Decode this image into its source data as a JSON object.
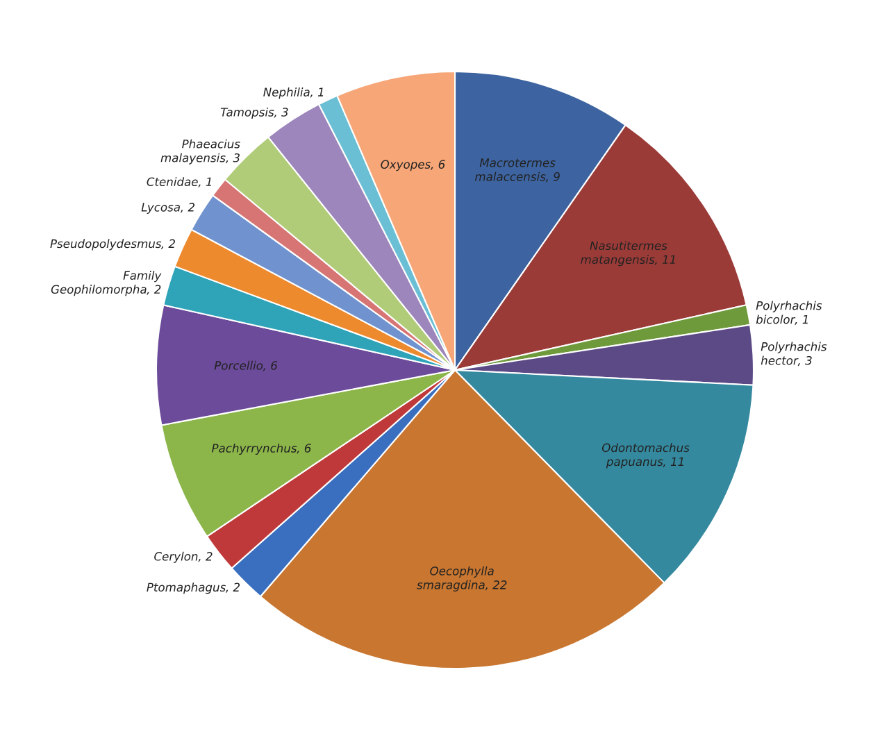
{
  "chart_data": {
    "type": "pie",
    "categories": [
      "Macrotermes malaccensis",
      "Nasutitermes matangensis",
      "Polyrhachis bicolor",
      "Polyrhachis hector",
      "Odontomachus papuanus",
      "Oecophylla smaragdina",
      "Ptomaphagus",
      "Cerylon",
      "Pachyrrynchus",
      "Porcellio",
      "Family Geophilomorpha",
      "Pseudopolydesmus",
      "Lycosa",
      "Ctenidae",
      "Phaeacius malayensis",
      "Tamopsis",
      "Nephilia",
      "Oxyopes"
    ],
    "values": [
      9,
      11,
      1,
      3,
      11,
      22,
      2,
      2,
      6,
      6,
      2,
      2,
      2,
      1,
      3,
      3,
      1,
      6
    ],
    "value_labels": [
      ", 9",
      ", 11",
      ", 1",
      ", 3",
      ", 11",
      ", 22",
      ", 2",
      ", 2",
      ", 6",
      ", 6",
      ", 2",
      ", 2",
      ", 2",
      ", 1",
      ", 3",
      ", 3",
      ", 1",
      ", 6"
    ],
    "colors": [
      "#3d64a0",
      "#9b3b38",
      "#6f9a3c",
      "#5c4a86",
      "#35899f",
      "#c87630",
      "#3a6fc0",
      "#c0393a",
      "#8cb64a",
      "#6b4b9a",
      "#2fa3b8",
      "#ee8a2e",
      "#7093d0",
      "#d77574",
      "#b0cc78",
      "#9c86bb",
      "#6bbfd4",
      "#f6a677"
    ]
  }
}
